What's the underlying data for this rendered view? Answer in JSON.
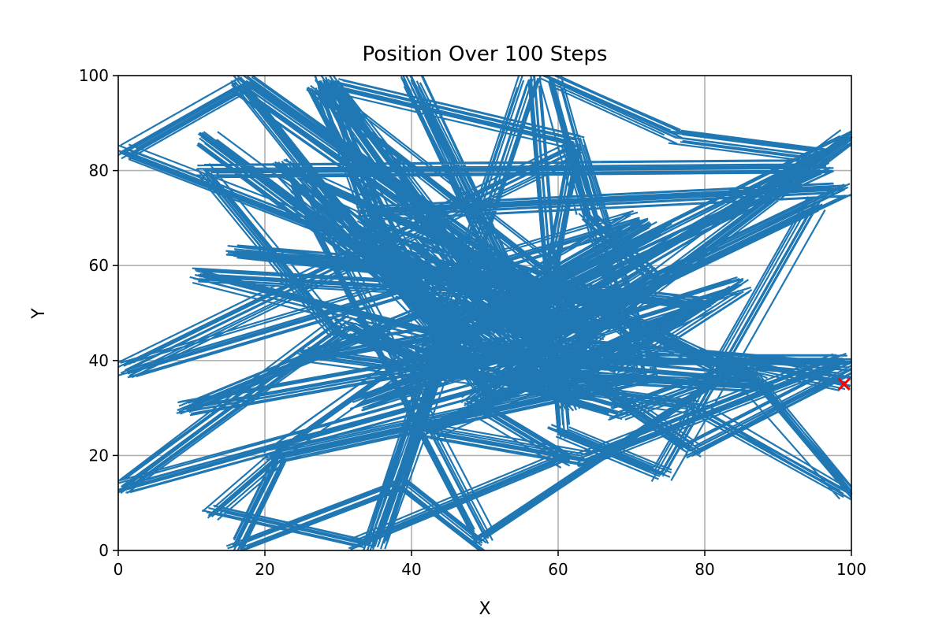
{
  "chart_data": {
    "type": "line",
    "title": "Position Over 100 Steps",
    "xlabel": "X",
    "ylabel": "Y",
    "xlim": [
      0,
      100
    ],
    "ylim": [
      0,
      100
    ],
    "xticks": [
      "0",
      "20",
      "40",
      "60",
      "80",
      "100"
    ],
    "yticks": [
      "0",
      "20",
      "40",
      "60",
      "80",
      "100"
    ],
    "grid": true,
    "colors": {
      "line": "#1f77b4",
      "end_marker": "#ff0000",
      "grid": "#b0b0b0"
    },
    "series": [
      {
        "values_xy": [
          [
            49,
            0.5
          ],
          [
            38,
            14
          ],
          [
            16,
            1
          ],
          [
            22,
            20
          ],
          [
            13,
            8
          ],
          [
            33,
            1
          ],
          [
            61,
            19
          ],
          [
            48,
            31
          ],
          [
            60,
            45
          ],
          [
            73,
            58
          ],
          [
            64,
            71
          ],
          [
            59,
            99
          ],
          [
            76,
            87
          ],
          [
            96,
            83
          ],
          [
            55,
            46
          ],
          [
            71,
            55
          ],
          [
            44,
            36
          ],
          [
            31,
            48
          ],
          [
            0.5,
            13.5
          ],
          [
            63,
            40
          ],
          [
            41,
            64
          ],
          [
            52,
            47
          ],
          [
            28,
            99
          ],
          [
            38,
            55
          ],
          [
            68,
            39
          ],
          [
            85,
            56
          ],
          [
            33,
            31
          ],
          [
            52,
            42
          ],
          [
            9,
            30
          ],
          [
            42,
            51
          ],
          [
            60,
            34
          ],
          [
            71,
            44
          ],
          [
            27,
            97
          ],
          [
            42,
            52
          ],
          [
            64,
            47
          ],
          [
            17,
            99
          ],
          [
            51,
            33
          ],
          [
            34,
            71
          ],
          [
            99,
            76
          ],
          [
            62,
            49
          ],
          [
            53,
            38
          ],
          [
            88,
            35
          ],
          [
            22,
            81
          ],
          [
            45,
            44
          ],
          [
            35,
            1
          ],
          [
            56,
            99
          ],
          [
            60,
            25
          ],
          [
            74,
            16
          ],
          [
            95,
            73
          ],
          [
            68,
            53
          ],
          [
            11,
            58
          ],
          [
            57,
            40
          ],
          [
            99,
            40
          ],
          [
            64,
            19
          ],
          [
            42,
            25
          ],
          [
            80,
            52
          ],
          [
            16,
            63
          ],
          [
            54,
            58
          ],
          [
            17,
            98
          ],
          [
            1,
            84
          ],
          [
            65,
            46
          ],
          [
            58,
            36
          ],
          [
            25,
            77
          ],
          [
            50,
            3
          ],
          [
            84,
            38
          ],
          [
            68,
            29
          ],
          [
            30,
            46
          ],
          [
            12,
            80
          ],
          [
            96,
            81
          ],
          [
            40,
            41
          ],
          [
            21,
            20
          ],
          [
            72,
            37
          ],
          [
            62,
            86
          ],
          [
            29,
            98
          ],
          [
            56,
            44
          ],
          [
            50,
            43
          ],
          [
            12,
            87
          ],
          [
            46,
            48
          ],
          [
            71,
            70
          ],
          [
            1,
            38
          ],
          [
            62,
            84
          ],
          [
            57,
            43
          ],
          [
            40,
            99
          ],
          [
            62,
            31
          ],
          [
            50,
            51
          ],
          [
            78,
            21
          ],
          [
            99.5,
            38
          ],
          [
            62,
            43
          ],
          [
            100,
            87
          ],
          [
            52,
            50
          ],
          [
            33,
            68
          ],
          [
            60,
            56
          ],
          [
            86,
            36
          ],
          [
            42,
            42
          ],
          [
            74,
            68
          ],
          [
            55,
            49
          ],
          [
            26,
            41
          ],
          [
            79,
            30
          ],
          [
            100,
            12
          ],
          [
            84,
            40
          ],
          [
            99,
            35
          ]
        ]
      }
    ],
    "end_point": [
      99,
      35
    ]
  }
}
